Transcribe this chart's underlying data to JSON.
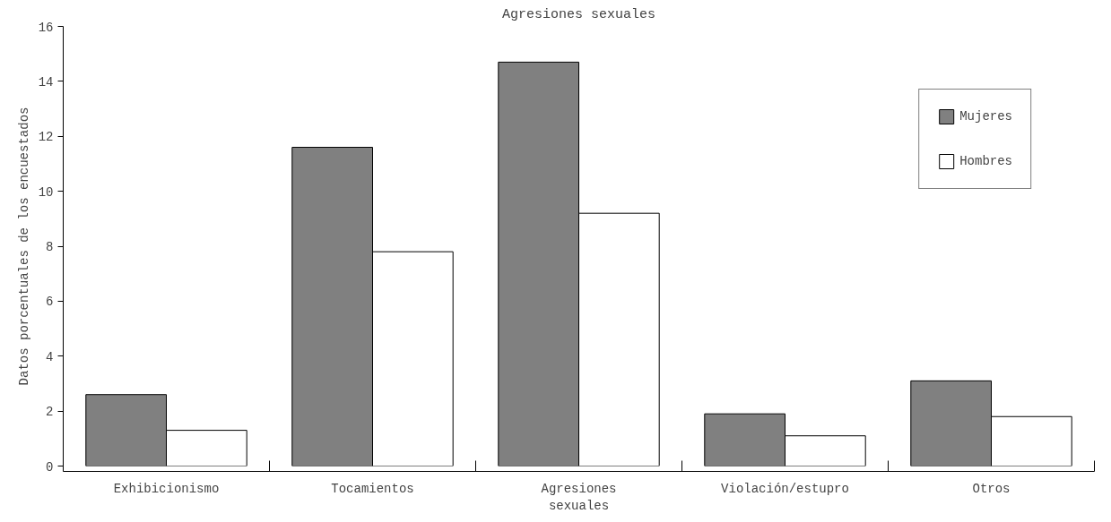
{
  "chart_data": {
    "type": "bar",
    "title": "Agresiones sexuales",
    "ylabel": "Datos porcentuales de los encuestados",
    "categories": [
      "Exhibicionismo",
      "Tocamientos",
      "Agresiones sexuales",
      "Violación/estupro",
      "Otros"
    ],
    "series": [
      {
        "name": "Mujeres",
        "color": "#808080",
        "values": [
          2.6,
          11.6,
          14.7,
          1.9,
          3.1
        ]
      },
      {
        "name": "Hombres",
        "color": "#ffffff",
        "values": [
          1.3,
          7.8,
          9.2,
          1.1,
          1.8
        ]
      }
    ],
    "ylim": [
      0,
      16
    ],
    "yticks": [
      0,
      2,
      4,
      6,
      8,
      10,
      12,
      14,
      16
    ],
    "grid": false,
    "legend": "top right"
  }
}
